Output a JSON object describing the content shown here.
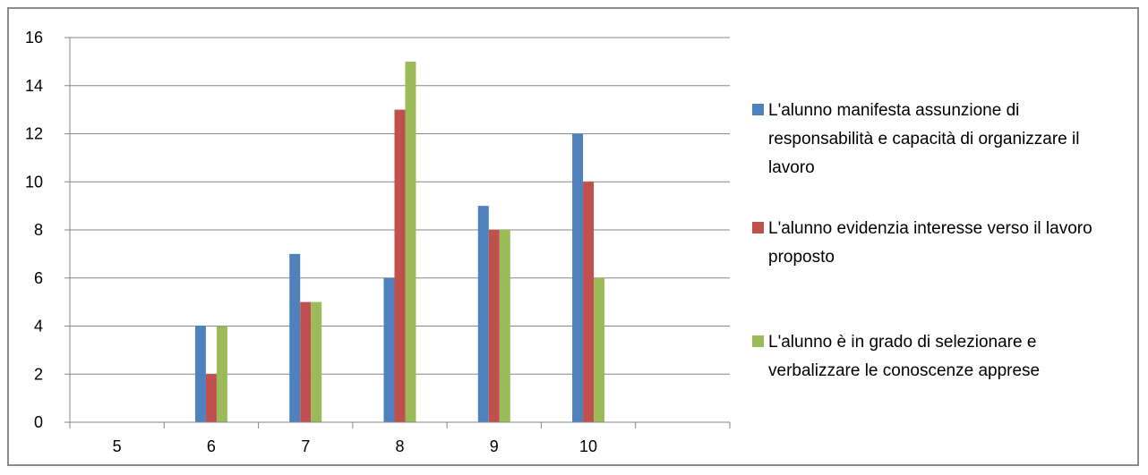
{
  "chart_data": {
    "type": "bar",
    "categories": [
      "5",
      "6",
      "7",
      "8",
      "9",
      "10"
    ],
    "series": [
      {
        "name": "L'alunno manifesta assunzione di responsabilità e capacità di organizzare il lavoro",
        "values": [
          0,
          4,
          7,
          6,
          9,
          12
        ],
        "color": "#4F81BD"
      },
      {
        "name": "L'alunno evidenzia interesse verso il lavoro proposto",
        "values": [
          0,
          2,
          5,
          13,
          8,
          10
        ],
        "color": "#C0504D"
      },
      {
        "name": "L'alunno è in grado di selezionare e verbalizzare le conoscenze apprese",
        "values": [
          0,
          4,
          5,
          15,
          8,
          6
        ],
        "color": "#9BBB59"
      }
    ],
    "yticks": [
      0,
      2,
      4,
      6,
      8,
      10,
      12,
      14,
      16
    ],
    "ylim": [
      0,
      16
    ],
    "grid": true,
    "legend_position": "right",
    "axis_color": "#868686"
  }
}
